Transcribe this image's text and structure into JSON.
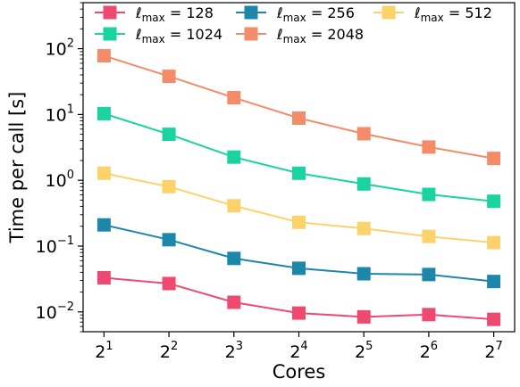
{
  "chart_data": {
    "type": "line",
    "xlabel": "Cores",
    "ylabel": "Time per call [s]",
    "x_scale": "log2",
    "y_scale": "log10",
    "x": [
      2,
      4,
      8,
      16,
      32,
      64,
      128
    ],
    "x_tick_labels": [
      {
        "base": "2",
        "exp": "1"
      },
      {
        "base": "2",
        "exp": "2"
      },
      {
        "base": "2",
        "exp": "3"
      },
      {
        "base": "2",
        "exp": "4"
      },
      {
        "base": "2",
        "exp": "5"
      },
      {
        "base": "2",
        "exp": "6"
      },
      {
        "base": "2",
        "exp": "7"
      }
    ],
    "y_tick_labels": [
      {
        "value": 0.01,
        "base": "10",
        "exp": "−2"
      },
      {
        "value": 0.1,
        "base": "10",
        "exp": "−1"
      },
      {
        "value": 1,
        "base": "10",
        "exp": "0"
      },
      {
        "value": 10,
        "base": "10",
        "exp": "1"
      },
      {
        "value": 100,
        "base": "10",
        "exp": "2"
      }
    ],
    "ylim": [
      0.005,
      500
    ],
    "xlim": [
      1.6,
      160
    ],
    "grid": false,
    "legend_position": "top",
    "legend_columns": 3,
    "series": [
      {
        "name": "ℓmax = 128",
        "label_sub": "max",
        "label_value": "128",
        "color": "#ee4a71",
        "values": [
          0.033,
          0.027,
          0.014,
          0.0096,
          0.0084,
          0.0091,
          0.0077
        ]
      },
      {
        "name": "ℓmax = 256",
        "label_sub": "max",
        "label_value": "256",
        "color": "#1d87a9",
        "values": [
          0.21,
          0.125,
          0.065,
          0.046,
          0.038,
          0.037,
          0.029
        ]
      },
      {
        "name": "ℓmax = 512",
        "label_sub": "max",
        "label_value": "512",
        "color": "#fcd26b",
        "values": [
          1.28,
          0.8,
          0.41,
          0.23,
          0.185,
          0.14,
          0.113
        ]
      },
      {
        "name": "ℓmax = 1024",
        "label_sub": "max",
        "label_value": "1024",
        "color": "#19d3a1",
        "values": [
          10.3,
          5.0,
          2.25,
          1.28,
          0.88,
          0.61,
          0.48
        ]
      },
      {
        "name": "ℓmax = 2048",
        "label_sub": "max",
        "label_value": "2048",
        "color": "#f48c6a",
        "values": [
          78,
          38,
          18,
          8.8,
          5.1,
          3.2,
          2.15
        ]
      }
    ]
  }
}
